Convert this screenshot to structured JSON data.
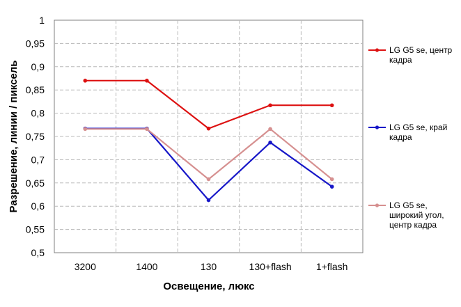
{
  "chart_data": {
    "type": "line",
    "xlabel": "Освещение,  люкс",
    "ylabel": "Разрешение,  линии / пиксель",
    "categories": [
      "3200",
      "1400",
      "130",
      "130+flash",
      "1+flash"
    ],
    "ylim": [
      0.5,
      1
    ],
    "yticks": [
      0.5,
      0.55,
      0.6,
      0.65,
      0.7,
      0.75,
      0.8,
      0.85,
      0.9,
      0.95,
      1
    ],
    "ytick_labels": [
      "0,5",
      "0,55",
      "0,6",
      "0,65",
      "0,7",
      "0,75",
      "0,8",
      "0,85",
      "0,9",
      "0,95",
      "1"
    ],
    "grid": true,
    "legend_position": "right",
    "series": [
      {
        "name": "LG G5 se, центр кадра",
        "legend_lines": [
          "LG G5 se, центр",
          "кадра"
        ],
        "color": "#dd1111",
        "values": [
          0.87,
          0.87,
          0.767,
          0.817,
          0.817
        ]
      },
      {
        "name": "LG G5 se, край кадра",
        "legend_lines": [
          "LG G5 se, край",
          "кадра"
        ],
        "color": "#1717c8",
        "values": [
          0.767,
          0.767,
          0.613,
          0.737,
          0.642
        ]
      },
      {
        "name": "LG G5 se, широкий угол, центр кадра",
        "legend_lines": [
          "LG G5 se,",
          "широкий угол,",
          "центр кадра"
        ],
        "color": "#d69090",
        "values": [
          0.766,
          0.766,
          0.658,
          0.766,
          0.658
        ]
      }
    ]
  }
}
